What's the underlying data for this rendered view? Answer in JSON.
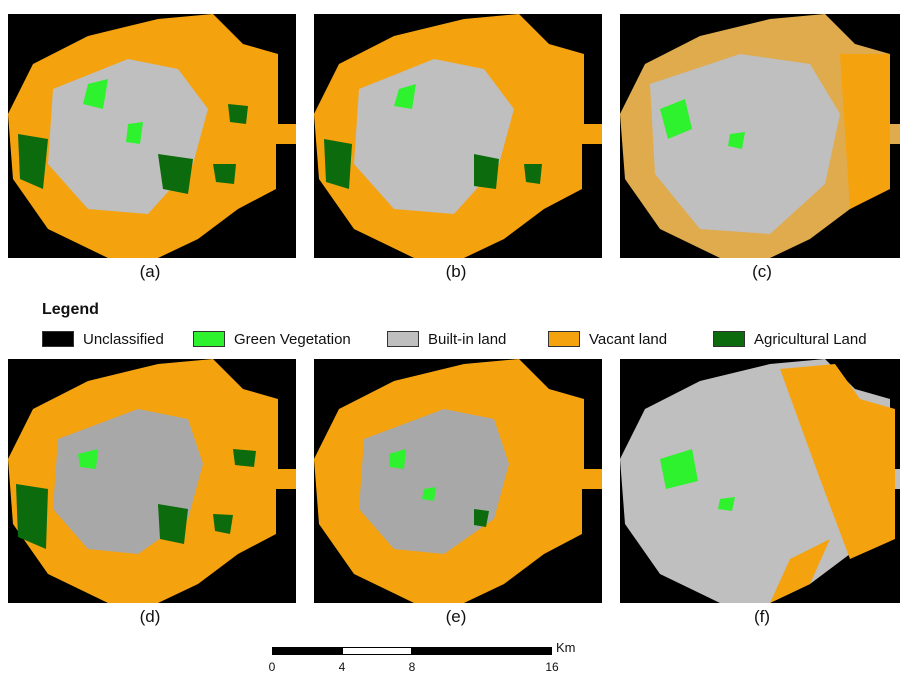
{
  "panels": [
    {
      "id": "a",
      "label": "(a)"
    },
    {
      "id": "b",
      "label": "(b)"
    },
    {
      "id": "c",
      "label": "(c)"
    },
    {
      "id": "d",
      "label": "(d)"
    },
    {
      "id": "e",
      "label": "(e)"
    },
    {
      "id": "f",
      "label": "(f)"
    }
  ],
  "legend": {
    "title": "Legend",
    "items": [
      {
        "label": "Unclassified",
        "color": "#000000"
      },
      {
        "label": "Green Vegetation",
        "color": "#2ef22e"
      },
      {
        "label": "Built-in land",
        "color": "#bfbfbf"
      },
      {
        "label": "Vacant land",
        "color": "#f5a20f"
      },
      {
        "label": "Agricultural Land",
        "color": "#0c6b0c"
      }
    ]
  },
  "scale_bar": {
    "unit": "Km",
    "ticks": [
      "0",
      "4",
      "8",
      "16"
    ]
  }
}
